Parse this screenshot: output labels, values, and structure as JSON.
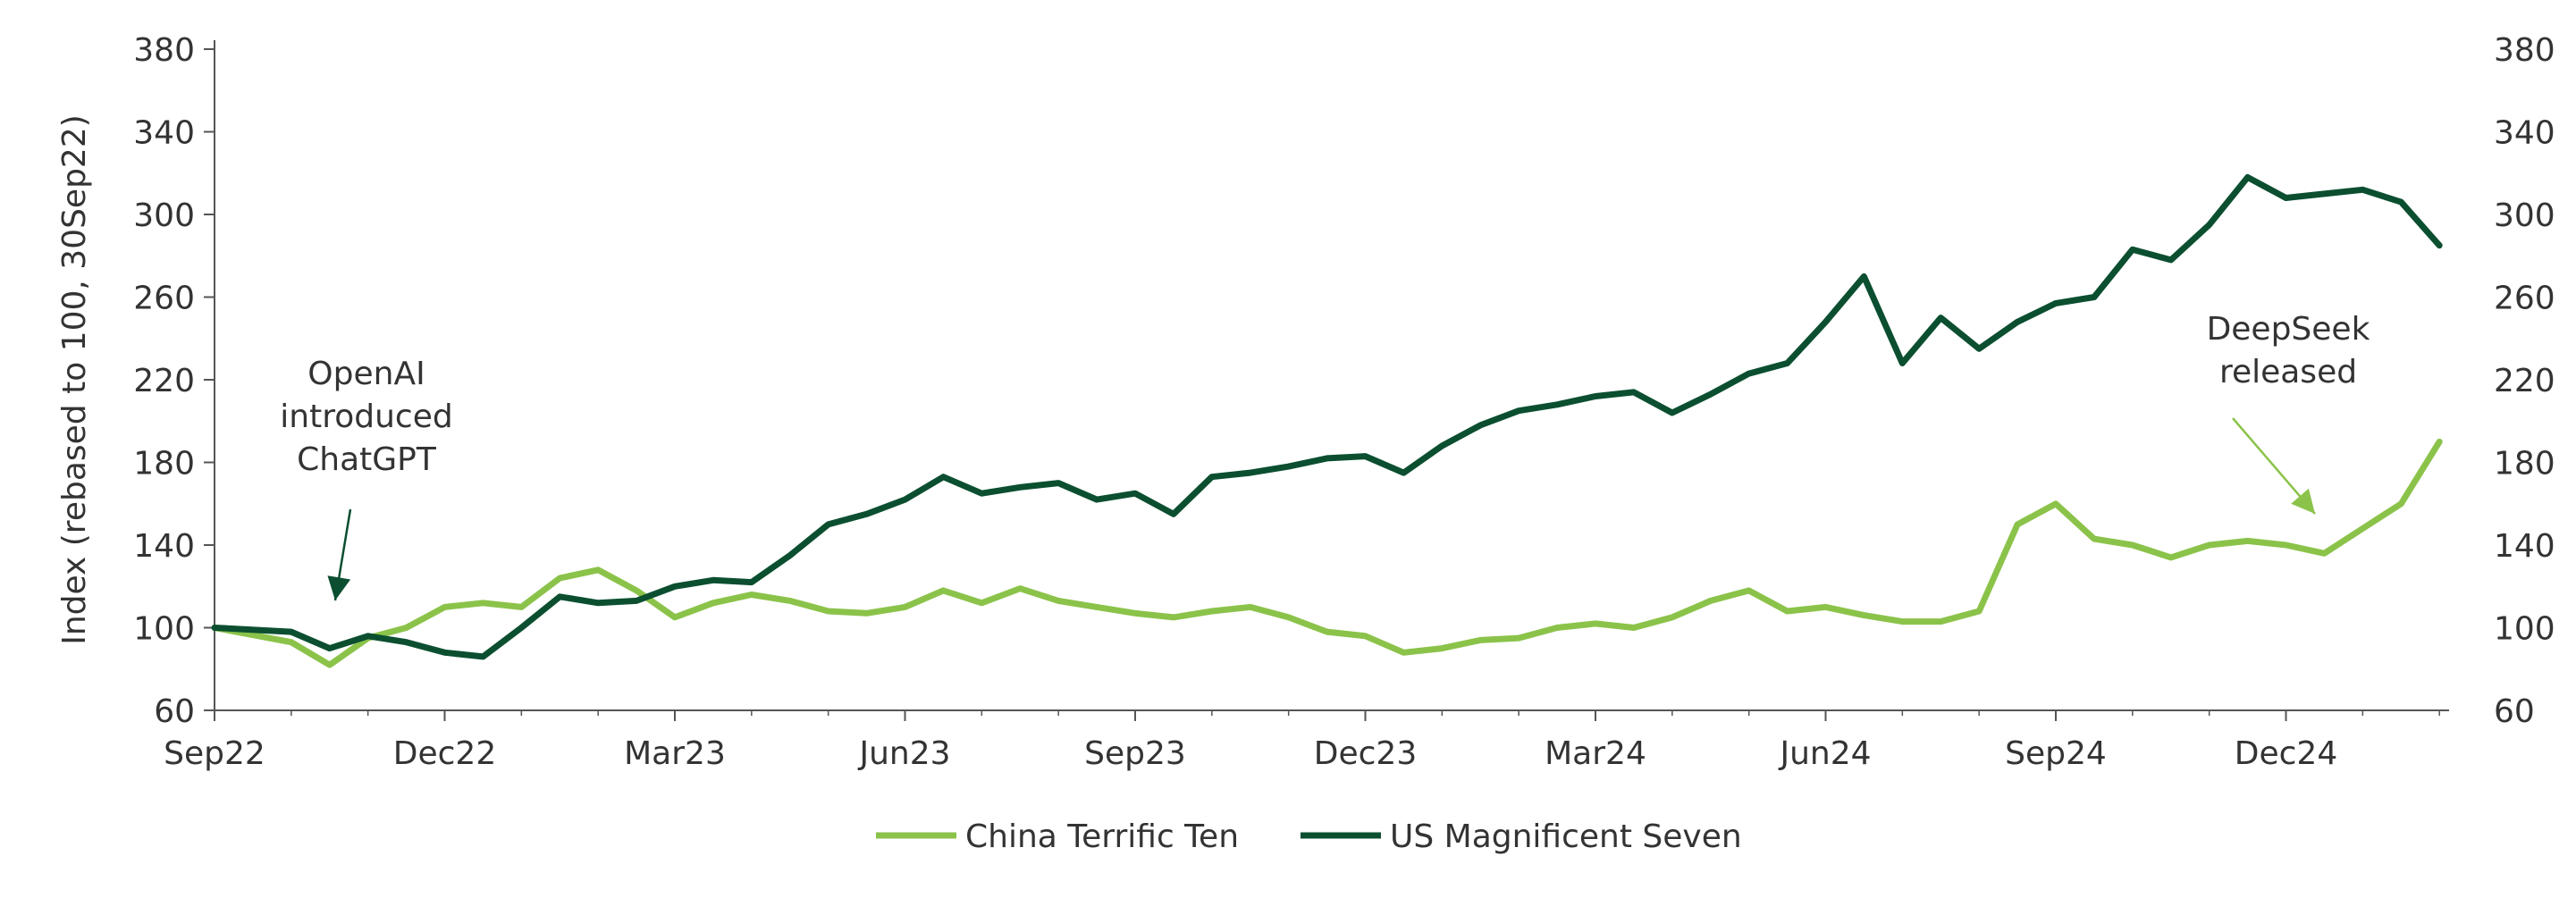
{
  "chart_data": {
    "type": "line",
    "title": "",
    "ylabel": "Index (rebased to 100, 30Sep22)",
    "xlabel": "",
    "ylim": [
      60,
      380
    ],
    "yticks": [
      60,
      100,
      140,
      180,
      220,
      260,
      300,
      340,
      380
    ],
    "y_ticks_both_sides": true,
    "grid": false,
    "x_ticks": [
      "Sep22",
      "Dec22",
      "Mar23",
      "Jun23",
      "Sep23",
      "Dec23",
      "Mar24",
      "Jun24",
      "Sep24",
      "Dec24"
    ],
    "x_range": [
      "Sep22",
      "Feb25"
    ],
    "legend_position": "bottom-center",
    "colors": {
      "China Terrific Ten": "#8bc34a",
      "US Magnificent Seven": "#0b4f30",
      "axis": "#555555",
      "text": "#333333"
    },
    "series": [
      {
        "name": "China Terrific Ten",
        "x": [
          "Sep22",
          "Oct22",
          "Oct22b",
          "Nov22",
          "Nov22b",
          "Dec22",
          "Dec22b",
          "Jan23",
          "Jan23b",
          "Feb23",
          "Feb23b",
          "Mar23",
          "Mar23b",
          "Apr23",
          "Apr23b",
          "May23",
          "May23b",
          "Jun23",
          "Jun23b",
          "Jul23",
          "Jul23b",
          "Aug23",
          "Aug23b",
          "Sep23",
          "Sep23b",
          "Oct23",
          "Oct23b",
          "Nov23",
          "Nov23b",
          "Dec23",
          "Dec23b",
          "Jan24",
          "Jan24b",
          "Feb24",
          "Feb24b",
          "Mar24",
          "Mar24b",
          "Apr24",
          "Apr24b",
          "May24",
          "May24b",
          "Jun24",
          "Jun24b",
          "Jul24",
          "Jul24b",
          "Aug24",
          "Aug24b",
          "Sep24",
          "Sep24b",
          "Oct24",
          "Oct24b",
          "Nov24",
          "Nov24b",
          "Dec24",
          "Dec24b",
          "Jan25",
          "Jan25b",
          "Feb25"
        ],
        "values": [
          100,
          93,
          82,
          95,
          100,
          110,
          112,
          110,
          124,
          128,
          118,
          105,
          112,
          116,
          113,
          108,
          107,
          110,
          118,
          112,
          119,
          113,
          110,
          107,
          105,
          108,
          110,
          105,
          98,
          96,
          88,
          90,
          94,
          95,
          100,
          102,
          100,
          105,
          113,
          118,
          108,
          110,
          106,
          103,
          103,
          108,
          150,
          160,
          143,
          140,
          134,
          140,
          142,
          140,
          136,
          148,
          160,
          190
        ]
      },
      {
        "name": "US Magnificent Seven",
        "x": [
          "Sep22",
          "Oct22",
          "Oct22b",
          "Nov22",
          "Nov22b",
          "Dec22",
          "Dec22b",
          "Jan23",
          "Jan23b",
          "Feb23",
          "Feb23b",
          "Mar23",
          "Mar23b",
          "Apr23",
          "Apr23b",
          "May23",
          "May23b",
          "Jun23",
          "Jun23b",
          "Jul23",
          "Jul23b",
          "Aug23",
          "Aug23b",
          "Sep23",
          "Sep23b",
          "Oct23",
          "Oct23b",
          "Nov23",
          "Nov23b",
          "Dec23",
          "Dec23b",
          "Jan24",
          "Jan24b",
          "Feb24",
          "Feb24b",
          "Mar24",
          "Mar24b",
          "Apr24",
          "Apr24b",
          "May24",
          "May24b",
          "Jun24",
          "Jun24b",
          "Jul24",
          "Jul24b",
          "Aug24",
          "Aug24b",
          "Sep24",
          "Sep24b",
          "Oct24",
          "Oct24b",
          "Nov24",
          "Nov24b",
          "Dec24",
          "Dec24b",
          "Jan25",
          "Jan25b",
          "Feb25"
        ],
        "values": [
          100,
          98,
          90,
          96,
          93,
          88,
          86,
          100,
          115,
          112,
          113,
          120,
          123,
          122,
          135,
          150,
          155,
          162,
          173,
          165,
          168,
          170,
          162,
          165,
          155,
          173,
          175,
          178,
          182,
          183,
          175,
          188,
          198,
          205,
          208,
          212,
          214,
          204,
          213,
          223,
          228,
          248,
          270,
          228,
          250,
          235,
          248,
          257,
          260,
          283,
          278,
          295,
          318,
          308,
          310,
          312,
          306,
          285
        ]
      }
    ],
    "annotations": [
      {
        "text_lines": [
          "OpenAI",
          "introduced",
          "ChatGPT"
        ],
        "x": "Nov22",
        "y": 100
      },
      {
        "text_lines": [
          "DeepSeek",
          "released"
        ],
        "x": "Jan25",
        "y": 155
      }
    ]
  }
}
